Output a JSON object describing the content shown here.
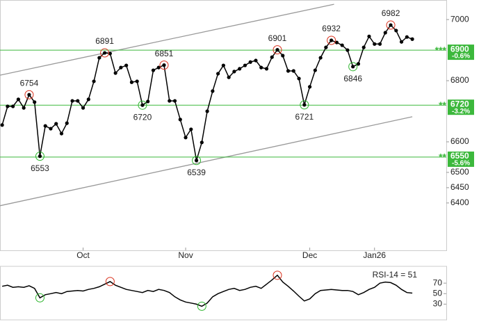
{
  "chart_data": [
    {
      "type": "line",
      "color": "#000000",
      "high_color": "#d9301c",
      "low_color": "#2db52d",
      "level_color": "#3cb83c",
      "trend_color": "#999999",
      "x": [
        0,
        1,
        2,
        3,
        4,
        5,
        6,
        7,
        8,
        9,
        10,
        11,
        12,
        13,
        14,
        15,
        16,
        17,
        18,
        19,
        20,
        21,
        22,
        23,
        24,
        25,
        26,
        27,
        28,
        29,
        30,
        31,
        32,
        33,
        34,
        35,
        36,
        37,
        38,
        39,
        40,
        41,
        42,
        43,
        44,
        45,
        46,
        47,
        48,
        49,
        50,
        51,
        52,
        53,
        54,
        55,
        56,
        57,
        58,
        59,
        60,
        61,
        62,
        63,
        64,
        65,
        66,
        67,
        68,
        69,
        70,
        71,
        72,
        73,
        74,
        75,
        76
      ],
      "series": [
        {
          "name": "Price",
          "values": [
            6655,
            6716,
            6716,
            6739,
            6711,
            6754,
            6730,
            6553,
            6652,
            6643,
            6659,
            6627,
            6661,
            6734,
            6734,
            6711,
            6739,
            6798,
            6875,
            6891,
            6889,
            6825,
            6843,
            6850,
            6795,
            6798,
            6720,
            6732,
            6834,
            6843,
            6851,
            6734,
            6734,
            6673,
            6614,
            6641,
            6539,
            6598,
            6700,
            6766,
            6823,
            6850,
            6811,
            6830,
            6839,
            6850,
            6861,
            6866,
            6843,
            6839,
            6877,
            6901,
            6882,
            6832,
            6832,
            6807,
            6721,
            6780,
            6834,
            6875,
            6909,
            6932,
            6925,
            6916,
            6900,
            6846,
            6855,
            6909,
            6945,
            6920,
            6920,
            6957,
            6982,
            6964,
            6927,
            6943,
            6936
          ]
        }
      ],
      "highs": [
        5,
        19,
        30,
        51,
        61,
        72
      ],
      "lows": [
        7,
        26,
        36,
        56,
        65
      ],
      "levels": [
        {
          "value": 6900,
          "stars": "***",
          "change": "-0.6%"
        },
        {
          "value": 6720,
          "stars": "**",
          "change": "-3.2%"
        },
        {
          "value": 6550,
          "stars": "**",
          "change": "-5.6%"
        }
      ],
      "trendlines": [
        {
          "x": [
            -0.4,
            61.5
          ],
          "y": [
            6818,
            7050
          ]
        },
        {
          "x": [
            -0.4,
            76
          ],
          "y": [
            6391,
            6682
          ]
        }
      ],
      "xlim": [
        -0.4,
        82.3
      ],
      "xticks": [
        {
          "value": 15,
          "label": "Oct"
        },
        {
          "value": 34,
          "label": "Nov"
        },
        {
          "value": 57,
          "label": "Dec"
        },
        {
          "value": 69,
          "label": "Jan26"
        }
      ],
      "ylim": [
        6245,
        7064
      ],
      "yticks": [
        7000,
        6800,
        6600,
        6500,
        6450,
        6400
      ]
    },
    {
      "type": "rsi",
      "title": "RSI-14 = 51",
      "color": "#000000",
      "series": [
        {
          "name": "RSI-14",
          "values": [
            64,
            66,
            62,
            63,
            62,
            65,
            60,
            42,
            48,
            50,
            52,
            50,
            54,
            55,
            56,
            55,
            58,
            60,
            63,
            68,
            73,
            66,
            62,
            58,
            56,
            54,
            52,
            56,
            54,
            58,
            56,
            52,
            44,
            38,
            34,
            32,
            30,
            26,
            32,
            44,
            50,
            54,
            58,
            60,
            56,
            58,
            62,
            64,
            60,
            68,
            76,
            85,
            72,
            64,
            55,
            45,
            36,
            40,
            50,
            56,
            57,
            58,
            57,
            56,
            56,
            54,
            48,
            52,
            58,
            62,
            70,
            72,
            71,
            66,
            58,
            52,
            51
          ]
        }
      ],
      "highs": [
        20,
        51
      ],
      "lows": [
        7,
        37
      ],
      "ylim": [
        0,
        102
      ],
      "yticks": [
        70,
        50,
        30
      ]
    }
  ]
}
